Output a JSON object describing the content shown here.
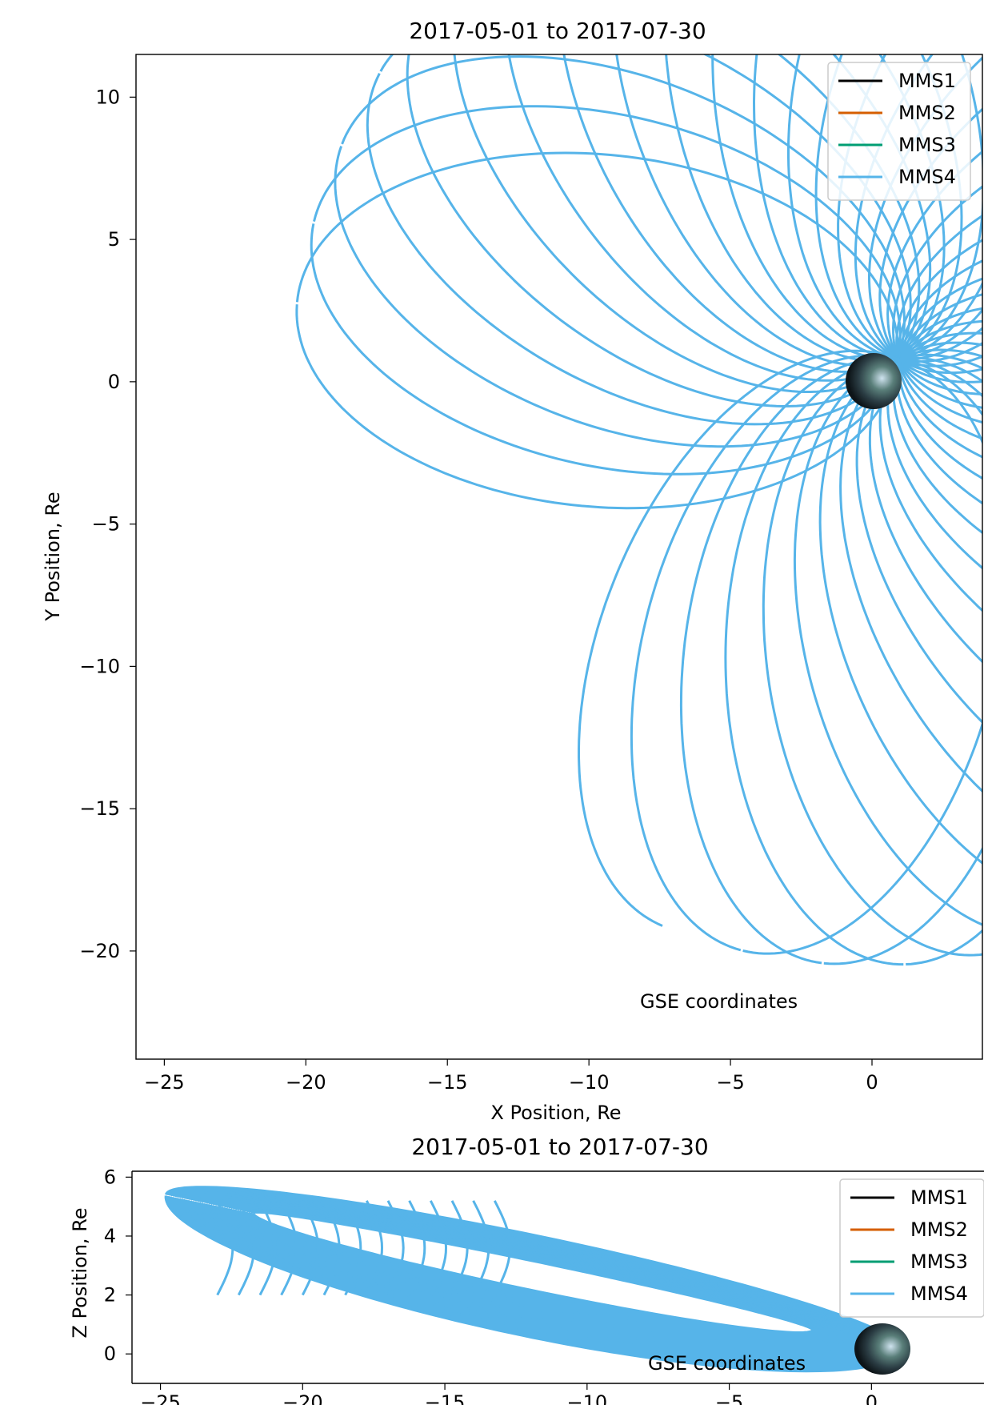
{
  "colors": {
    "MMS1": "#000000",
    "MMS2": "#d55e00",
    "MMS3": "#009e73",
    "MMS4": "#56b4e9"
  },
  "chart_data": [
    {
      "type": "line",
      "title": "2017-05-01 to 2017-07-30",
      "xlabel": "X Position, Re",
      "ylabel": "Y Position, Re",
      "xlim": [
        -26,
        3.9
      ],
      "ylim": [
        -23.8,
        11.5
      ],
      "xticks": [
        -25,
        -20,
        -15,
        -10,
        -5,
        0
      ],
      "xtick_labels": [
        "−25",
        "−20",
        "−15",
        "−10",
        "−5",
        "0"
      ],
      "yticks": [
        -20,
        -15,
        -10,
        -5,
        0,
        5,
        10
      ],
      "ytick_labels": [
        "−20",
        "−15",
        "−10",
        "−5",
        "0",
        "5",
        "10"
      ],
      "grid": false,
      "legend": "upper right",
      "series": [
        {
          "name": "MMS1",
          "color": "#000000"
        },
        {
          "name": "MMS2",
          "color": "#d55e00"
        },
        {
          "name": "MMS3",
          "color": "#009e73"
        },
        {
          "name": "MMS4",
          "color": "#56b4e9"
        }
      ],
      "orbits": {
        "count": 36,
        "apogee_first": [
          -20.3,
          2.8
        ],
        "apogee_last": [
          -8.6,
          -22.2
        ],
        "apogee_distance": 20.5,
        "perigee_point": [
          0.9,
          0.8
        ]
      },
      "annotation": "GSE coordinates",
      "earth_marker": [
        0,
        0
      ]
    },
    {
      "type": "line",
      "title": "2017-05-01 to 2017-07-30",
      "xlabel": "",
      "ylabel": "Z Position, Re",
      "xlim": [
        -26,
        3.9
      ],
      "ylim": [
        -1.0,
        6.2
      ],
      "xticks": [
        -25,
        -20,
        -15,
        -10,
        -5,
        0
      ],
      "xtick_labels": [
        "−25",
        "−20",
        "−15",
        "−10",
        "−5",
        "0"
      ],
      "yticks": [
        0,
        2,
        4,
        6
      ],
      "ytick_labels": [
        "0",
        "2",
        "4",
        "6"
      ],
      "grid": false,
      "legend": "upper right",
      "series": [
        {
          "name": "MMS1",
          "color": "#000000"
        },
        {
          "name": "MMS2",
          "color": "#d55e00"
        },
        {
          "name": "MMS3",
          "color": "#009e73"
        },
        {
          "name": "MMS4",
          "color": "#56b4e9"
        }
      ],
      "annotation": "GSE coordinates",
      "earth_marker": [
        0,
        0
      ]
    }
  ]
}
